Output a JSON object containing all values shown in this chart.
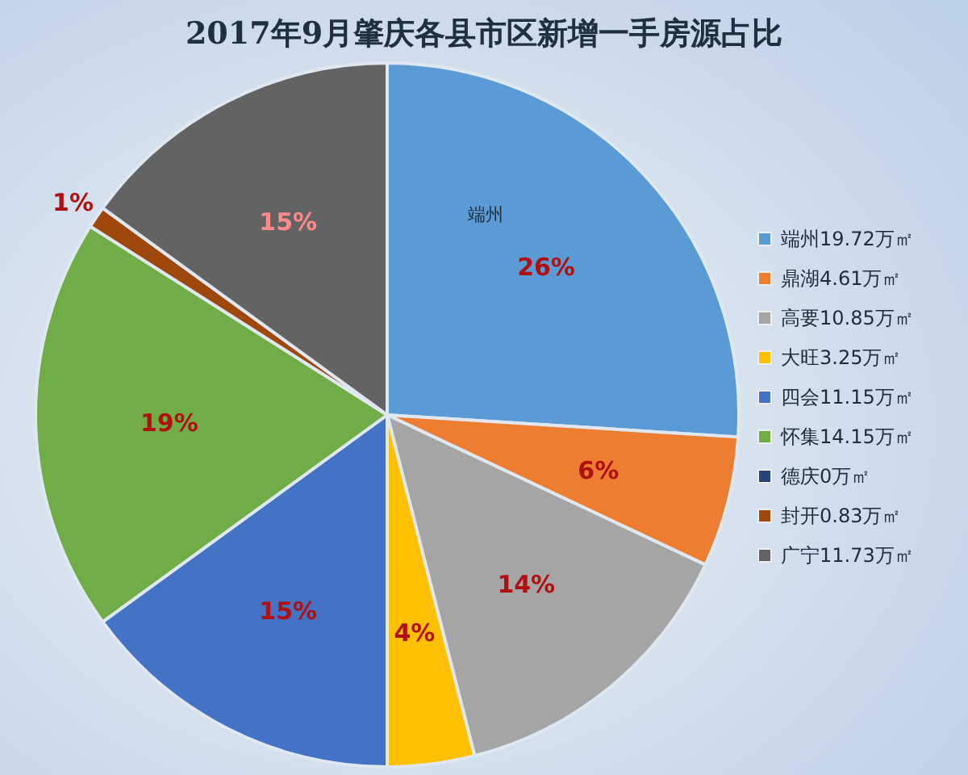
{
  "chart_data": {
    "type": "pie",
    "title": "2017年9月肇庆各县市区新增一手房源占比",
    "categories": [
      "端州19.72万㎡",
      "鼎湖4.61万㎡",
      "高要10.85万㎡",
      "大旺3.25万㎡",
      "四会11.15万㎡",
      "怀集14.15万㎡",
      "德庆0万㎡",
      "封开0.83万㎡",
      "广宁11.73万㎡"
    ],
    "values": [
      26,
      6,
      14,
      4,
      15,
      19,
      0,
      1,
      15
    ],
    "colors": [
      "#5b9bd5",
      "#ed7d31",
      "#a5a5a5",
      "#ffc000",
      "#4472c4",
      "#70ad47",
      "#264478",
      "#9e480e",
      "#636363"
    ],
    "value_labels": [
      "26%",
      "6%",
      "14%",
      "4%",
      "15%",
      "19%",
      null,
      "1%",
      "15%"
    ],
    "annotations": [
      "端州"
    ],
    "legend": "right"
  }
}
